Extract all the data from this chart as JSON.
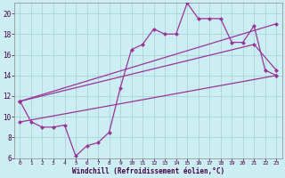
{
  "xlabel": "Windchill (Refroidissement éolien,°C)",
  "bg_color": "#cceef2",
  "grid_color": "#aad4da",
  "line_color": "#993399",
  "xlim": [
    -0.5,
    23.5
  ],
  "ylim": [
    6,
    21
  ],
  "xticks": [
    0,
    1,
    2,
    3,
    4,
    5,
    6,
    7,
    8,
    9,
    10,
    11,
    12,
    13,
    14,
    15,
    16,
    17,
    18,
    19,
    20,
    21,
    22,
    23
  ],
  "yticks": [
    6,
    8,
    10,
    12,
    14,
    16,
    18,
    20
  ],
  "line1_x": [
    0,
    1,
    2,
    3,
    4,
    5,
    6,
    7,
    8,
    9,
    10,
    11,
    12,
    13,
    14,
    15,
    16,
    17,
    18,
    19,
    20,
    21,
    22,
    23
  ],
  "line1_y": [
    11.5,
    9.5,
    9.0,
    9.0,
    9.2,
    6.2,
    7.2,
    7.5,
    8.5,
    12.8,
    16.5,
    17.0,
    18.5,
    18.0,
    18.0,
    21.0,
    19.5,
    19.5,
    19.5,
    17.2,
    17.2,
    18.8,
    14.5,
    14.0
  ],
  "line2_x": [
    0,
    23
  ],
  "line2_y": [
    9.5,
    14.0
  ],
  "line3_x": [
    0,
    21,
    23
  ],
  "line3_y": [
    11.5,
    17.0,
    14.5
  ],
  "line4_x": [
    0,
    23
  ],
  "line4_y": [
    11.5,
    19.0
  ]
}
